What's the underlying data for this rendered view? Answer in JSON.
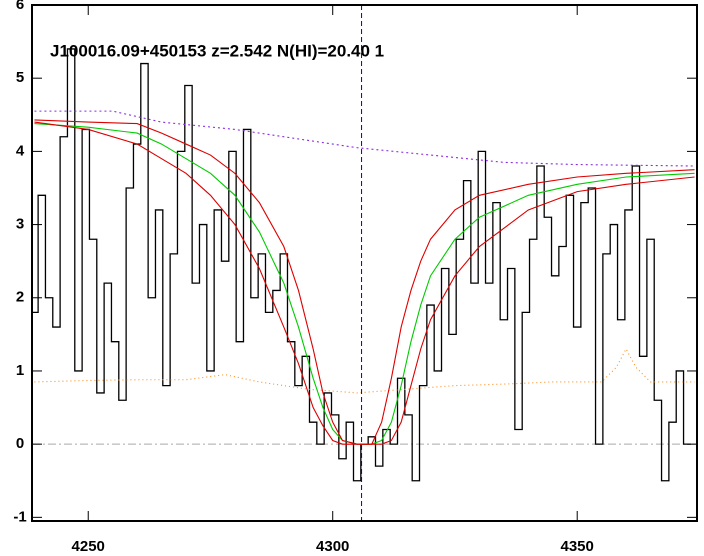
{
  "chart_data": {
    "type": "line",
    "title": "J100016.09+450153 z=2.542 N(HI)=20.40 1",
    "xlim": [
      4238.5,
      4374.5
    ],
    "ylim": [
      -1.05,
      6.0
    ],
    "xticks": [
      4250,
      4300,
      4350
    ],
    "yticks": [
      -1,
      0,
      1,
      2,
      3,
      4,
      5,
      6
    ],
    "vline": 4305.9,
    "vline_color": "#0000cc",
    "hline": 0,
    "hline_color": "#aaaaaa",
    "series": [
      {
        "color": "#000000",
        "step": true,
        "x": [
          4239,
          4240.5,
          4242,
          4243.5,
          4245,
          4246.5,
          4248,
          4249.5,
          4251,
          4252.5,
          4254,
          4255.5,
          4257,
          4258.5,
          4260,
          4261.5,
          4263,
          4264.5,
          4266,
          4267.5,
          4269,
          4270.5,
          4272,
          4273.5,
          4275,
          4276.5,
          4278,
          4279.5,
          4281,
          4282.5,
          4284,
          4285.5,
          4287,
          4288.5,
          4290,
          4291.5,
          4293,
          4294.5,
          4296,
          4297.5,
          4299,
          4300.5,
          4302,
          4303.5,
          4305,
          4306.5,
          4308,
          4309.5,
          4311,
          4312.5,
          4314,
          4315.5,
          4317,
          4318.5,
          4320,
          4321.5,
          4323,
          4324.5,
          4326,
          4327.5,
          4329,
          4330.5,
          4332,
          4333.5,
          4335,
          4336.5,
          4338,
          4339.5,
          4341,
          4342.5,
          4344,
          4345.5,
          4347,
          4348.5,
          4350,
          4351.5,
          4353,
          4354.5,
          4356,
          4357.5,
          4359,
          4360.5,
          4362,
          4363.5,
          4365,
          4366.5,
          4368,
          4369.5,
          4371,
          4372.5
        ],
        "values": [
          1.8,
          3.4,
          2.0,
          1.6,
          4.2,
          5.4,
          1.0,
          4.3,
          2.8,
          0.7,
          2.2,
          1.4,
          0.6,
          3.5,
          4.1,
          5.2,
          2.0,
          3.2,
          0.8,
          2.6,
          4.0,
          4.9,
          2.2,
          3.0,
          1.0,
          3.2,
          2.5,
          4.0,
          1.4,
          4.3,
          2.0,
          2.6,
          1.8,
          2.1,
          2.6,
          1.4,
          0.8,
          1.2,
          0.3,
          0.0,
          0.7,
          0.4,
          -0.2,
          0.3,
          -0.5,
          0.0,
          0.1,
          -0.3,
          0.2,
          0.0,
          0.9,
          0.4,
          -0.5,
          0.8,
          1.9,
          1.0,
          2.4,
          1.5,
          2.8,
          3.6,
          2.2,
          4.0,
          2.2,
          3.3,
          1.7,
          2.4,
          0.2,
          1.8,
          2.8,
          3.8,
          3.1,
          2.3,
          2.7,
          3.4,
          1.6,
          3.3,
          3.5,
          0.0,
          2.6,
          3.0,
          1.7,
          3.2,
          3.8,
          1.2,
          2.8,
          0.6,
          -0.5,
          0.3,
          1.0,
          0.0
        ]
      },
      {
        "color": "#ff8c1a",
        "dash": "1 3",
        "x": [
          4239,
          4250,
          4260,
          4270,
          4278,
          4285,
          4295,
          4305,
          4315,
          4325,
          4335,
          4345,
          4355,
          4358,
          4360,
          4362,
          4365,
          4374
        ],
        "values": [
          0.85,
          0.87,
          0.88,
          0.88,
          0.95,
          0.85,
          0.75,
          0.7,
          0.75,
          0.8,
          0.82,
          0.85,
          0.85,
          1.05,
          1.3,
          1.05,
          0.85,
          0.85
        ]
      },
      {
        "color": "#8a2be2",
        "dash": "2 3",
        "x": [
          4239,
          4255,
          4265,
          4280,
          4295,
          4305,
          4320,
          4335,
          4350,
          4374
        ],
        "values": [
          4.55,
          4.55,
          4.4,
          4.3,
          4.15,
          4.05,
          3.95,
          3.85,
          3.82,
          3.8
        ]
      },
      {
        "color": "#00cc00",
        "x": [
          4239,
          4250,
          4260,
          4265,
          4270,
          4275,
          4280,
          4285,
          4290,
          4293,
          4296,
          4298,
          4300,
          4302,
          4305,
          4308,
          4310,
          4312,
          4314,
          4316,
          4318,
          4320,
          4325,
          4330,
          4340,
          4350,
          4360,
          4374
        ],
        "values": [
          4.38,
          4.33,
          4.25,
          4.1,
          3.9,
          3.7,
          3.4,
          2.9,
          2.2,
          1.6,
          0.9,
          0.5,
          0.2,
          0.05,
          0.0,
          0.0,
          0.05,
          0.3,
          0.8,
          1.4,
          1.9,
          2.3,
          2.8,
          3.1,
          3.4,
          3.55,
          3.65,
          3.7
        ]
      },
      {
        "color": "#dd0000",
        "x": [
          4239,
          4250,
          4260,
          4265,
          4270,
          4275,
          4280,
          4285,
          4290,
          4293,
          4296,
          4298,
          4300,
          4302,
          4305,
          4308,
          4310,
          4312,
          4314,
          4316,
          4318,
          4320,
          4325,
          4330,
          4340,
          4350,
          4360,
          4374
        ],
        "values": [
          4.43,
          4.4,
          4.38,
          4.25,
          4.1,
          3.95,
          3.7,
          3.3,
          2.7,
          2.1,
          1.3,
          0.7,
          0.3,
          0.05,
          0.0,
          0.0,
          0.3,
          0.9,
          1.6,
          2.1,
          2.5,
          2.8,
          3.2,
          3.4,
          3.55,
          3.65,
          3.7,
          3.75
        ]
      },
      {
        "color": "#dd0000",
        "x": [
          4239,
          4250,
          4260,
          4265,
          4270,
          4275,
          4280,
          4285,
          4290,
          4293,
          4296,
          4298,
          4300,
          4302,
          4305,
          4308,
          4310,
          4312,
          4314,
          4316,
          4318,
          4320,
          4325,
          4330,
          4340,
          4350,
          4360,
          4374
        ],
        "values": [
          4.4,
          4.3,
          4.1,
          3.9,
          3.7,
          3.4,
          3.0,
          2.4,
          1.6,
          1.1,
          0.5,
          0.25,
          0.05,
          0.0,
          0.0,
          0.0,
          0.0,
          0.05,
          0.3,
          0.8,
          1.3,
          1.7,
          2.3,
          2.7,
          3.2,
          3.45,
          3.55,
          3.65
        ]
      }
    ]
  }
}
